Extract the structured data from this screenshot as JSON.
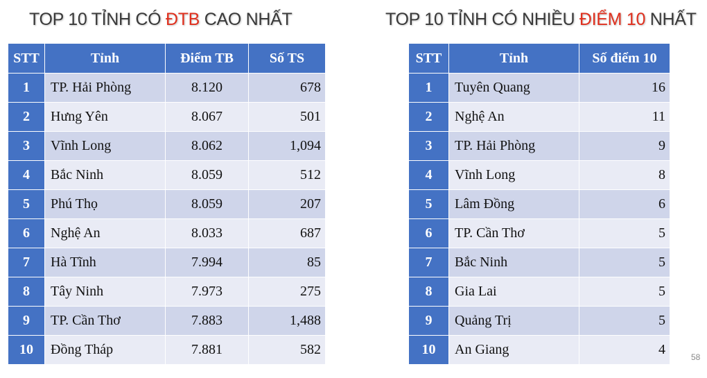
{
  "left": {
    "title_pre": "TOP 10 TỈNH CÓ ",
    "title_hl": "ĐTB",
    "title_post": " CAO NHẤT",
    "headers": [
      "STT",
      "Tỉnh",
      "Điểm TB",
      "Số TS"
    ],
    "rows": [
      {
        "stt": "1",
        "tinh": "TP. Hải Phòng",
        "diem": "8.120",
        "so": "678"
      },
      {
        "stt": "2",
        "tinh": "Hưng Yên",
        "diem": "8.067",
        "so": "501"
      },
      {
        "stt": "3",
        "tinh": "Vĩnh Long",
        "diem": "8.062",
        "so": "1,094"
      },
      {
        "stt": "4",
        "tinh": "Bắc Ninh",
        "diem": "8.059",
        "so": "512"
      },
      {
        "stt": "5",
        "tinh": "Phú Thọ",
        "diem": "8.059",
        "so": "207"
      },
      {
        "stt": "6",
        "tinh": "Nghệ An",
        "diem": "8.033",
        "so": "687"
      },
      {
        "stt": "7",
        "tinh": "Hà Tĩnh",
        "diem": "7.994",
        "so": "85"
      },
      {
        "stt": "8",
        "tinh": "Tây Ninh",
        "diem": "7.973",
        "so": "275"
      },
      {
        "stt": "9",
        "tinh": "TP. Cần Thơ",
        "diem": "7.883",
        "so": "1,488"
      },
      {
        "stt": "10",
        "tinh": "Đồng Tháp",
        "diem": "7.881",
        "so": "582"
      }
    ]
  },
  "right": {
    "title_pre": "TOP 10 TỈNH CÓ NHIỀU ",
    "title_hl": "ĐIỂM 10",
    "title_post": " NHẤT",
    "headers": [
      "STT",
      "Tỉnh",
      "Số điểm 10"
    ],
    "rows": [
      {
        "stt": "1",
        "tinh": "Tuyên Quang",
        "so": "16"
      },
      {
        "stt": "2",
        "tinh": "Nghệ An",
        "so": "11"
      },
      {
        "stt": "3",
        "tinh": "TP. Hải Phòng",
        "so": "9"
      },
      {
        "stt": "4",
        "tinh": "Vĩnh Long",
        "so": "8"
      },
      {
        "stt": "5",
        "tinh": "Lâm Đồng",
        "so": "6"
      },
      {
        "stt": "6",
        "tinh": "TP. Cần Thơ",
        "so": "5"
      },
      {
        "stt": "7",
        "tinh": "Bắc Ninh",
        "so": "5"
      },
      {
        "stt": "8",
        "tinh": "Gia Lai",
        "so": "5"
      },
      {
        "stt": "9",
        "tinh": "Quảng Trị",
        "so": "5"
      },
      {
        "stt": "10",
        "tinh": "An Giang",
        "so": "4"
      }
    ]
  },
  "page_number": "58",
  "colors": {
    "header": "#4472c4",
    "row_odd": "#cfd5ea",
    "row_even": "#e9ebf5",
    "highlight": "#e0301e"
  }
}
